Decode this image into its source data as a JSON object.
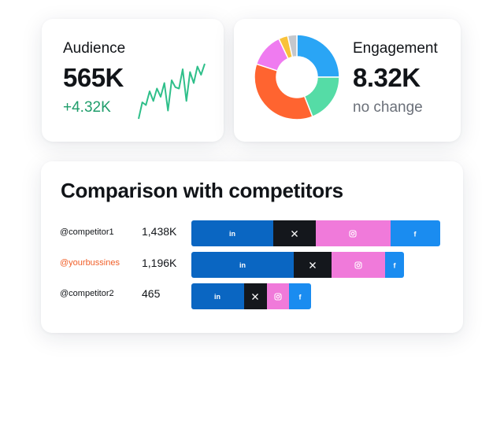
{
  "audience": {
    "label": "Audience",
    "value": "565K",
    "change": "+4.32K",
    "change_color": "#1f9d6b",
    "sparkline_color": "#2fbf8a",
    "sparkline_values": [
      2,
      14,
      12,
      22,
      15,
      24,
      18,
      28,
      8,
      30,
      25,
      24,
      38,
      15,
      36,
      28,
      40,
      34,
      42
    ]
  },
  "engagement": {
    "label": "Engagement",
    "value": "8.32K",
    "change": "no change",
    "change_color": "#6b7079",
    "donut": [
      {
        "name": "linkedin",
        "value": 25,
        "color": "#2aa5f5"
      },
      {
        "name": "green",
        "value": 19,
        "color": "#55dca6"
      },
      {
        "name": "orange",
        "value": 36,
        "color": "#ff6430"
      },
      {
        "name": "pink",
        "value": 13,
        "color": "#ef7bf0"
      },
      {
        "name": "yellow",
        "value": 3.5,
        "color": "#f9c23a"
      },
      {
        "name": "gray",
        "value": 3.5,
        "color": "#c4c7cc"
      }
    ]
  },
  "comparison": {
    "title": "Comparison with competitors",
    "rows": [
      {
        "handle": "@competitor1",
        "handle_color": "#111418",
        "count": "1,438K",
        "bar_fraction": 1.0,
        "segments": [
          {
            "network": "linkedin",
            "icon": "in",
            "share": 0.33,
            "color": "#0a66c2"
          },
          {
            "network": "x",
            "icon": "𝕏",
            "share": 0.17,
            "color": "#14171c"
          },
          {
            "network": "instagram",
            "icon": "ig",
            "share": 0.3,
            "color": "#f07ada"
          },
          {
            "network": "facebook",
            "icon": "f",
            "share": 0.2,
            "color": "#1a8cf0"
          }
        ]
      },
      {
        "handle": "@yourbussines",
        "handle_color": "#f0602a",
        "count": "1,196K",
        "bar_fraction": 0.855,
        "segments": [
          {
            "network": "linkedin",
            "icon": "in",
            "share": 0.48,
            "color": "#0a66c2"
          },
          {
            "network": "x",
            "icon": "𝕏",
            "share": 0.18,
            "color": "#14171c"
          },
          {
            "network": "instagram",
            "icon": "ig",
            "share": 0.25,
            "color": "#f07ada"
          },
          {
            "network": "facebook",
            "icon": "f",
            "share": 0.09,
            "color": "#1a8cf0"
          }
        ]
      },
      {
        "handle": "@competitor2",
        "handle_color": "#111418",
        "count": "465",
        "bar_fraction": 0.48,
        "segments": [
          {
            "network": "linkedin",
            "icon": "in",
            "share": 0.44,
            "color": "#0a66c2"
          },
          {
            "network": "x",
            "icon": "𝕏",
            "share": 0.19,
            "color": "#14171c"
          },
          {
            "network": "instagram",
            "icon": "ig",
            "share": 0.19,
            "color": "#f07ada"
          },
          {
            "network": "facebook",
            "icon": "f",
            "share": 0.18,
            "color": "#1a8cf0"
          }
        ]
      }
    ]
  }
}
